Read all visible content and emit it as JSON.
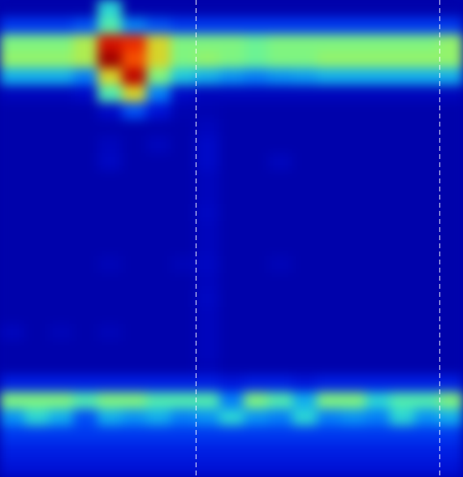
{
  "chart_data": {
    "type": "heatmap",
    "tick_labels": false,
    "color": "jet",
    "zlim": [
      0,
      1
    ],
    "xlim": [
      0,
      19
    ],
    "ylim": [
      0,
      28
    ],
    "line_style": "dashed",
    "markers": [
      8.03,
      18.03
    ],
    "cells": [
      [
        0.07,
        0.07,
        0.07,
        0.07,
        0.4,
        0.07,
        0.07,
        0.07,
        0.07,
        0.07,
        0.07,
        0.07,
        0.07,
        0.07,
        0.07,
        0.07,
        0.07,
        0.07,
        0.07
      ],
      [
        0.22,
        0.22,
        0.22,
        0.25,
        0.45,
        0.3,
        0.25,
        0.22,
        0.22,
        0.22,
        0.22,
        0.22,
        0.22,
        0.22,
        0.22,
        0.22,
        0.22,
        0.22,
        0.22
      ],
      [
        0.5,
        0.5,
        0.5,
        0.55,
        0.85,
        0.8,
        0.6,
        0.5,
        0.5,
        0.5,
        0.48,
        0.5,
        0.5,
        0.5,
        0.5,
        0.5,
        0.5,
        0.5,
        0.52
      ],
      [
        0.52,
        0.52,
        0.52,
        0.55,
        0.95,
        0.75,
        0.6,
        0.5,
        0.52,
        0.5,
        0.48,
        0.5,
        0.5,
        0.52,
        0.52,
        0.52,
        0.52,
        0.52,
        0.52
      ],
      [
        0.35,
        0.35,
        0.35,
        0.3,
        0.6,
        0.9,
        0.5,
        0.38,
        0.35,
        0.32,
        0.3,
        0.32,
        0.33,
        0.35,
        0.35,
        0.35,
        0.35,
        0.35,
        0.35
      ],
      [
        0.1,
        0.1,
        0.1,
        0.12,
        0.45,
        0.6,
        0.3,
        0.12,
        0.1,
        0.1,
        0.1,
        0.1,
        0.1,
        0.1,
        0.1,
        0.1,
        0.1,
        0.1,
        0.1
      ],
      [
        0.07,
        0.07,
        0.07,
        0.07,
        0.12,
        0.25,
        0.15,
        0.08,
        0.08,
        0.07,
        0.07,
        0.07,
        0.07,
        0.07,
        0.07,
        0.07,
        0.07,
        0.07,
        0.07
      ],
      [
        0.07,
        0.07,
        0.07,
        0.07,
        0.07,
        0.07,
        0.07,
        0.07,
        0.1,
        0.07,
        0.07,
        0.07,
        0.07,
        0.07,
        0.07,
        0.07,
        0.07,
        0.07,
        0.07
      ],
      [
        0.07,
        0.07,
        0.07,
        0.07,
        0.1,
        0.07,
        0.1,
        0.07,
        0.12,
        0.07,
        0.07,
        0.07,
        0.07,
        0.07,
        0.07,
        0.07,
        0.07,
        0.07,
        0.07
      ],
      [
        0.07,
        0.07,
        0.07,
        0.07,
        0.11,
        0.07,
        0.07,
        0.07,
        0.12,
        0.07,
        0.07,
        0.1,
        0.07,
        0.07,
        0.07,
        0.07,
        0.07,
        0.07,
        0.07
      ],
      [
        0.07,
        0.07,
        0.07,
        0.07,
        0.07,
        0.07,
        0.07,
        0.07,
        0.1,
        0.07,
        0.07,
        0.07,
        0.07,
        0.07,
        0.07,
        0.07,
        0.07,
        0.07,
        0.07
      ],
      [
        0.07,
        0.07,
        0.07,
        0.07,
        0.07,
        0.07,
        0.07,
        0.07,
        0.1,
        0.07,
        0.07,
        0.07,
        0.07,
        0.07,
        0.07,
        0.07,
        0.07,
        0.07,
        0.07
      ],
      [
        0.07,
        0.07,
        0.07,
        0.07,
        0.07,
        0.07,
        0.07,
        0.07,
        0.11,
        0.07,
        0.07,
        0.07,
        0.07,
        0.07,
        0.07,
        0.07,
        0.07,
        0.07,
        0.07
      ],
      [
        0.07,
        0.07,
        0.07,
        0.07,
        0.07,
        0.07,
        0.07,
        0.07,
        0.1,
        0.07,
        0.07,
        0.07,
        0.07,
        0.07,
        0.07,
        0.07,
        0.07,
        0.07,
        0.07
      ],
      [
        0.07,
        0.07,
        0.07,
        0.07,
        0.07,
        0.07,
        0.07,
        0.07,
        0.1,
        0.07,
        0.07,
        0.07,
        0.07,
        0.07,
        0.07,
        0.07,
        0.07,
        0.07,
        0.07
      ],
      [
        0.07,
        0.07,
        0.07,
        0.07,
        0.09,
        0.07,
        0.07,
        0.09,
        0.11,
        0.07,
        0.07,
        0.09,
        0.07,
        0.07,
        0.07,
        0.07,
        0.07,
        0.07,
        0.07
      ],
      [
        0.07,
        0.07,
        0.07,
        0.07,
        0.07,
        0.07,
        0.07,
        0.07,
        0.1,
        0.07,
        0.07,
        0.07,
        0.07,
        0.07,
        0.07,
        0.07,
        0.07,
        0.07,
        0.07
      ],
      [
        0.07,
        0.07,
        0.07,
        0.07,
        0.07,
        0.07,
        0.07,
        0.07,
        0.11,
        0.07,
        0.07,
        0.07,
        0.07,
        0.07,
        0.07,
        0.07,
        0.07,
        0.07,
        0.07
      ],
      [
        0.07,
        0.07,
        0.07,
        0.07,
        0.07,
        0.07,
        0.07,
        0.07,
        0.1,
        0.07,
        0.07,
        0.07,
        0.07,
        0.07,
        0.07,
        0.07,
        0.07,
        0.07,
        0.07
      ],
      [
        0.1,
        0.07,
        0.09,
        0.07,
        0.09,
        0.07,
        0.07,
        0.07,
        0.1,
        0.07,
        0.07,
        0.07,
        0.07,
        0.07,
        0.07,
        0.07,
        0.07,
        0.07,
        0.07
      ],
      [
        0.07,
        0.07,
        0.07,
        0.07,
        0.07,
        0.07,
        0.07,
        0.07,
        0.1,
        0.07,
        0.07,
        0.07,
        0.07,
        0.07,
        0.07,
        0.07,
        0.07,
        0.07,
        0.07
      ],
      [
        0.07,
        0.07,
        0.07,
        0.07,
        0.07,
        0.07,
        0.07,
        0.07,
        0.09,
        0.07,
        0.07,
        0.07,
        0.07,
        0.07,
        0.07,
        0.07,
        0.07,
        0.07,
        0.07
      ],
      [
        0.18,
        0.18,
        0.18,
        0.18,
        0.18,
        0.18,
        0.18,
        0.18,
        0.18,
        0.16,
        0.18,
        0.18,
        0.16,
        0.18,
        0.18,
        0.18,
        0.18,
        0.18,
        0.18
      ],
      [
        0.5,
        0.5,
        0.5,
        0.45,
        0.5,
        0.5,
        0.45,
        0.45,
        0.45,
        0.3,
        0.5,
        0.45,
        0.35,
        0.5,
        0.5,
        0.4,
        0.45,
        0.45,
        0.5
      ],
      [
        0.32,
        0.4,
        0.35,
        0.25,
        0.35,
        0.32,
        0.35,
        0.3,
        0.32,
        0.4,
        0.32,
        0.3,
        0.4,
        0.3,
        0.32,
        0.3,
        0.4,
        0.32,
        0.35
      ],
      [
        0.22,
        0.22,
        0.22,
        0.22,
        0.22,
        0.22,
        0.22,
        0.22,
        0.22,
        0.22,
        0.22,
        0.22,
        0.22,
        0.22,
        0.22,
        0.22,
        0.22,
        0.22,
        0.22
      ],
      [
        0.18,
        0.18,
        0.18,
        0.18,
        0.18,
        0.18,
        0.18,
        0.18,
        0.18,
        0.18,
        0.18,
        0.18,
        0.18,
        0.18,
        0.18,
        0.18,
        0.18,
        0.18,
        0.18
      ],
      [
        0.15,
        0.15,
        0.15,
        0.15,
        0.15,
        0.15,
        0.15,
        0.15,
        0.15,
        0.15,
        0.15,
        0.15,
        0.15,
        0.15,
        0.15,
        0.15,
        0.15,
        0.15,
        0.15
      ]
    ]
  }
}
